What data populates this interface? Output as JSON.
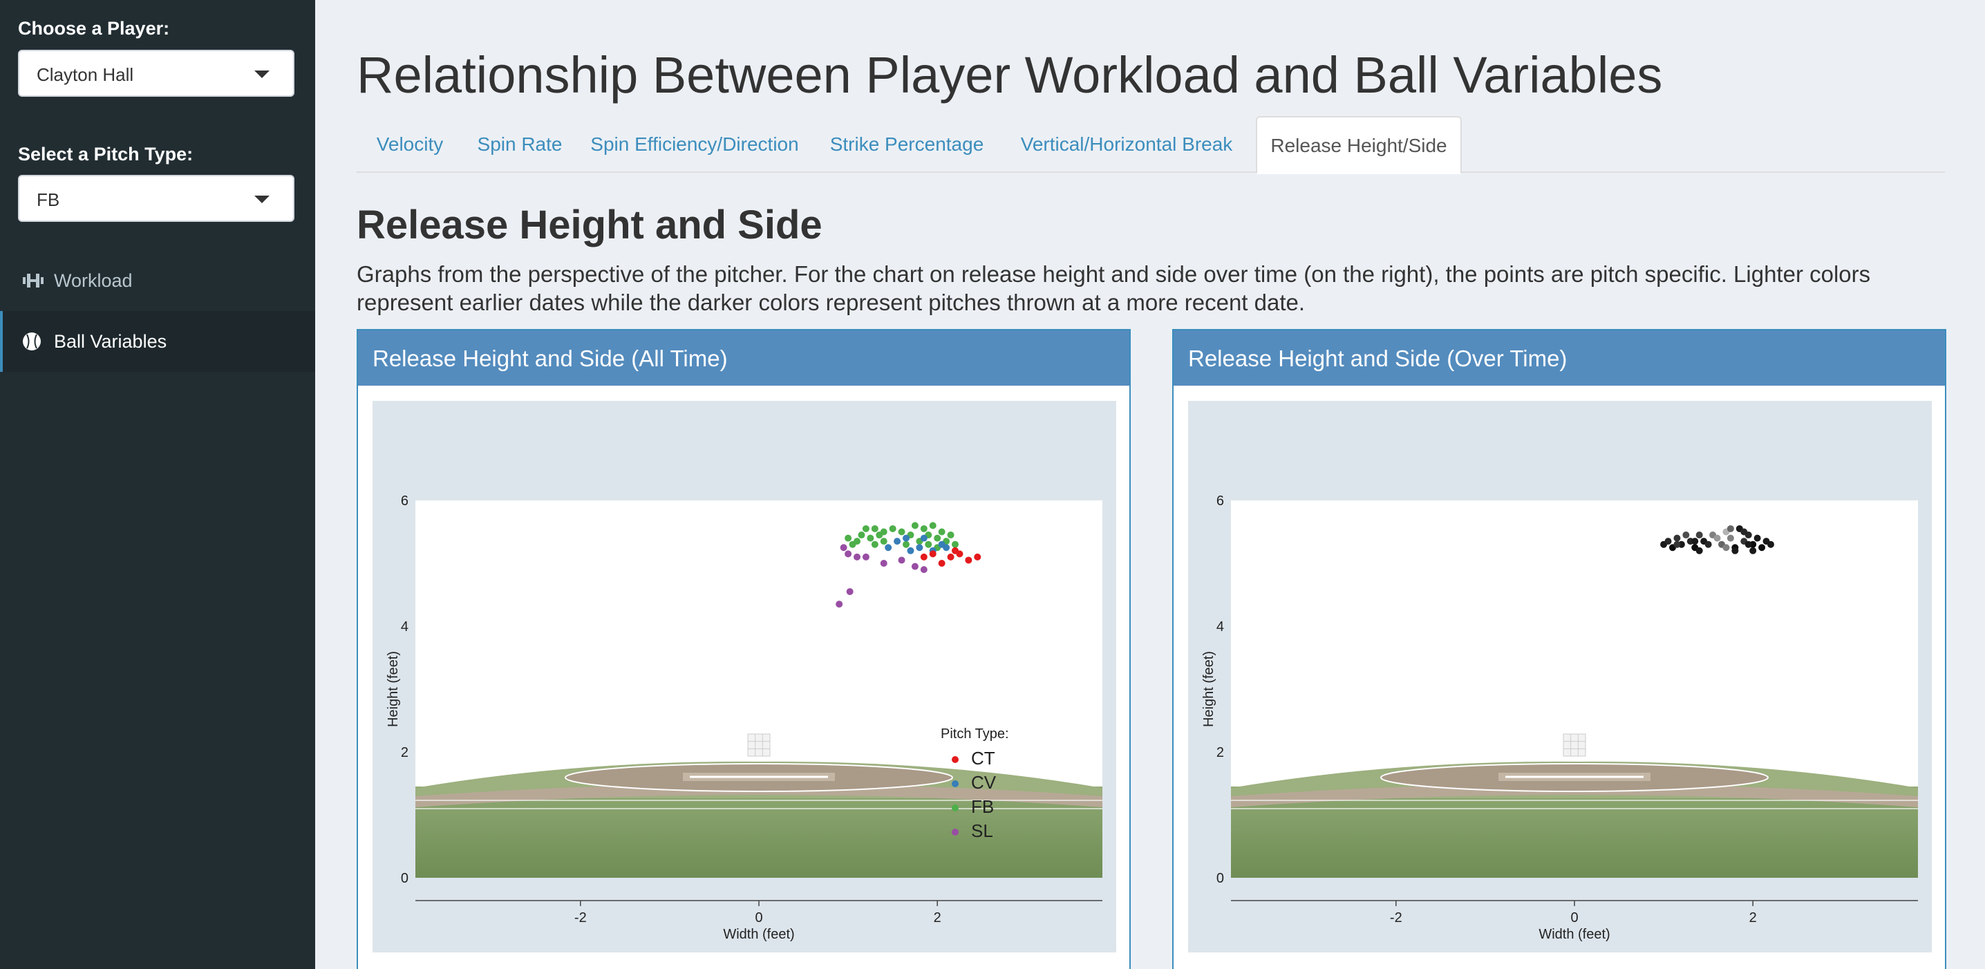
{
  "sidebar": {
    "player_label": "Choose a Player:",
    "player_value": "Clayton Hall",
    "pitch_label": "Select a Pitch Type:",
    "pitch_value": "FB",
    "items": [
      {
        "label": "Workload",
        "icon": "dumbbell-icon"
      },
      {
        "label": "Ball Variables",
        "icon": "baseball-icon",
        "active": true
      }
    ]
  },
  "main": {
    "title": "Relationship Between Player Workload and Ball Variables",
    "tabs": [
      {
        "label": "Velocity"
      },
      {
        "label": "Spin Rate"
      },
      {
        "label": "Spin Efficiency/Direction"
      },
      {
        "label": "Strike Percentage"
      },
      {
        "label": "Vertical/Horizontal Break"
      },
      {
        "label": "Release Height/Side",
        "active": true
      }
    ],
    "section_title": "Release Height and Side",
    "description": "Graphs from the perspective of the pitcher. For the chart on release height and side over time (on the right), the points are pitch specific. Lighter colors represent earlier dates while the darker colors represent pitches thrown at a more recent date.",
    "boxes": [
      {
        "title": "Release Height and Side (All Time)"
      },
      {
        "title": "Release Height and Side (Over Time)"
      }
    ]
  },
  "colors": {
    "sidebar_bg": "#222d32",
    "box_header": "#548cbe",
    "tab_link": "#3c8dbc",
    "CT": "#e41a1c",
    "CV": "#377eb8",
    "FB": "#4daf4a",
    "SL": "#984ea3"
  },
  "chart_data": [
    {
      "type": "scatter",
      "title": "",
      "xlabel": "Width (feet)",
      "ylabel": "Height (feet)",
      "xlim": [
        -3.85,
        3.85
      ],
      "ylim": [
        0,
        6
      ],
      "xticks": [
        "-2",
        "0",
        "2"
      ],
      "yticks": [
        "0",
        "2",
        "4",
        "6"
      ],
      "legend": {
        "title": "Pitch Type:",
        "placement": "bottom-right",
        "entries": [
          "CT",
          "CV",
          "FB",
          "SL"
        ]
      },
      "series": [
        {
          "name": "FB",
          "points": [
            [
              1.0,
              5.4
            ],
            [
              1.05,
              5.3
            ],
            [
              1.1,
              5.35
            ],
            [
              1.15,
              5.45
            ],
            [
              1.2,
              5.55
            ],
            [
              1.25,
              5.4
            ],
            [
              1.3,
              5.55
            ],
            [
              1.35,
              5.45
            ],
            [
              1.4,
              5.5
            ],
            [
              1.5,
              5.55
            ],
            [
              1.6,
              5.5
            ],
            [
              1.7,
              5.45
            ],
            [
              1.75,
              5.6
            ],
            [
              1.8,
              5.35
            ],
            [
              1.85,
              5.55
            ],
            [
              1.9,
              5.45
            ],
            [
              1.95,
              5.6
            ],
            [
              2.0,
              5.4
            ],
            [
              2.05,
              5.5
            ],
            [
              2.1,
              5.35
            ],
            [
              2.15,
              5.45
            ],
            [
              2.2,
              5.3
            ],
            [
              1.65,
              5.3
            ],
            [
              1.9,
              5.3
            ],
            [
              2.0,
              5.25
            ],
            [
              1.3,
              5.3
            ],
            [
              1.4,
              5.35
            ]
          ]
        },
        {
          "name": "CV",
          "points": [
            [
              1.55,
              5.35
            ],
            [
              1.65,
              5.4
            ],
            [
              1.7,
              5.2
            ],
            [
              1.8,
              5.25
            ],
            [
              1.85,
              5.4
            ],
            [
              1.95,
              5.2
            ],
            [
              2.05,
              5.3
            ],
            [
              1.45,
              5.25
            ],
            [
              2.1,
              5.25
            ]
          ]
        },
        {
          "name": "CT",
          "points": [
            [
              1.85,
              5.1
            ],
            [
              1.95,
              5.15
            ],
            [
              2.05,
              5.0
            ],
            [
              2.15,
              5.1
            ],
            [
              2.25,
              5.15
            ],
            [
              2.35,
              5.05
            ],
            [
              2.45,
              5.1
            ],
            [
              2.2,
              5.2
            ]
          ]
        },
        {
          "name": "SL",
          "points": [
            [
              1.0,
              5.15
            ],
            [
              1.1,
              5.1
            ],
            [
              1.2,
              5.1
            ],
            [
              1.4,
              5.0
            ],
            [
              1.6,
              5.05
            ],
            [
              1.75,
              4.95
            ],
            [
              1.85,
              4.9
            ],
            [
              0.95,
              5.25
            ],
            [
              1.02,
              4.55
            ],
            [
              0.9,
              4.35
            ]
          ]
        }
      ]
    },
    {
      "type": "scatter",
      "title": "",
      "xlabel": "Width (feet)",
      "ylabel": "Height (feet)",
      "xlim": [
        -3.85,
        3.85
      ],
      "ylim": [
        0,
        6
      ],
      "xticks": [
        "-2",
        "0",
        "2"
      ],
      "yticks": [
        "0",
        "2",
        "4",
        "6"
      ],
      "series": [
        {
          "name": "",
          "points": [
            [
              1.0,
              5.3
            ],
            [
              1.05,
              5.35
            ],
            [
              1.1,
              5.25
            ],
            [
              1.15,
              5.4
            ],
            [
              1.2,
              5.3
            ],
            [
              1.25,
              5.45
            ],
            [
              1.3,
              5.35
            ],
            [
              1.35,
              5.25
            ],
            [
              1.4,
              5.45
            ],
            [
              1.45,
              5.35
            ],
            [
              1.5,
              5.3
            ],
            [
              1.55,
              5.45
            ],
            [
              1.4,
              5.2
            ],
            [
              1.6,
              5.4
            ],
            [
              1.65,
              5.3
            ],
            [
              1.7,
              5.5
            ],
            [
              1.75,
              5.4
            ],
            [
              1.8,
              5.25
            ],
            [
              1.85,
              5.55
            ],
            [
              1.9,
              5.35
            ],
            [
              1.95,
              5.45
            ],
            [
              2.0,
              5.3
            ],
            [
              2.05,
              5.4
            ],
            [
              2.1,
              5.25
            ],
            [
              2.15,
              5.35
            ],
            [
              2.2,
              5.3
            ],
            [
              1.75,
              5.55
            ],
            [
              1.8,
              5.2
            ],
            [
              1.9,
              5.5
            ],
            [
              2.0,
              5.2
            ],
            [
              1.35,
              5.35
            ],
            [
              1.15,
              5.3
            ],
            [
              1.7,
              5.25
            ],
            [
              1.95,
              5.3
            ]
          ],
          "shades": [
            0.9,
            0.85,
            0.95,
            0.8,
            0.9,
            0.7,
            0.85,
            0.95,
            0.75,
            0.9,
            0.85,
            0.5,
            0.9,
            0.4,
            0.6,
            0.3,
            0.5,
            0.95,
            0.9,
            0.8,
            0.85,
            0.95,
            0.9,
            0.95,
            0.9,
            0.9,
            0.6,
            0.9,
            0.85,
            0.9,
            0.9,
            0.8,
            0.5,
            0.9
          ]
        }
      ]
    }
  ]
}
